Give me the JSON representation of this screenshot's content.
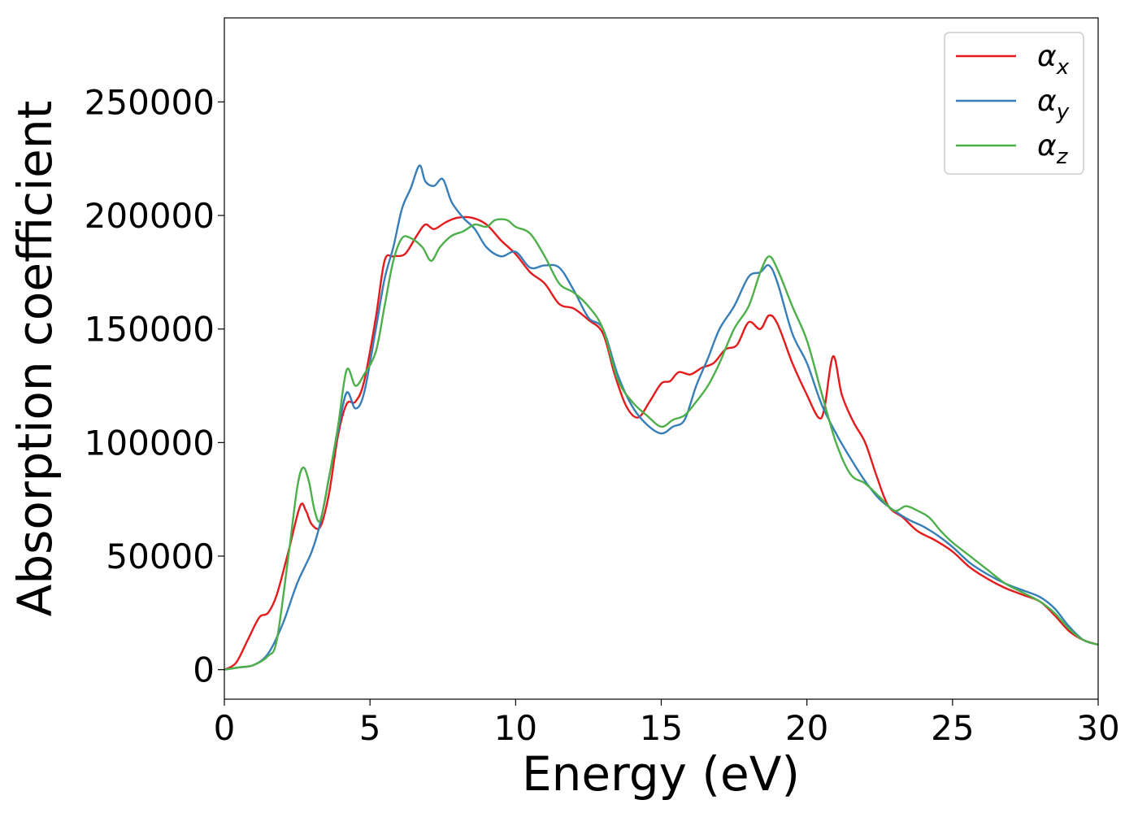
{
  "chart_data": {
    "type": "line",
    "title": "",
    "xlabel": "Energy (eV)",
    "ylabel": "Absorption coefficient",
    "xlim": [
      0,
      30
    ],
    "ylim": [
      -13000,
      287000
    ],
    "xticks": [
      0,
      5,
      10,
      15,
      20,
      25,
      30
    ],
    "yticks": [
      0,
      50000,
      100000,
      150000,
      200000,
      250000
    ],
    "grid": false,
    "legend_position": "top-right",
    "series": [
      {
        "name": "α",
        "subscript": "x",
        "color": "#e41a1c",
        "x": [
          0,
          0.4,
          0.8,
          1.2,
          1.5,
          1.8,
          2.2,
          2.6,
          2.8,
          3.0,
          3.3,
          3.6,
          3.9,
          4.2,
          4.5,
          4.8,
          5.2,
          5.5,
          5.8,
          6.2,
          6.6,
          6.9,
          7.2,
          7.6,
          8.0,
          8.5,
          9.0,
          9.5,
          10.0,
          10.5,
          11.0,
          11.5,
          12.0,
          12.5,
          13.0,
          13.4,
          13.8,
          14.2,
          14.6,
          15.0,
          15.3,
          15.6,
          16.0,
          16.4,
          16.8,
          17.2,
          17.6,
          18.0,
          18.4,
          18.7,
          19.0,
          19.5,
          20.0,
          20.4,
          20.6,
          20.9,
          21.2,
          21.6,
          22.0,
          22.4,
          22.8,
          23.3,
          23.8,
          24.4,
          25.0,
          25.6,
          26.2,
          26.8,
          27.4,
          28.0,
          28.5,
          29.0,
          29.5,
          30.0
        ],
        "y": [
          0,
          3000,
          13000,
          23000,
          25000,
          33000,
          52000,
          72000,
          70000,
          64000,
          63000,
          78000,
          103000,
          117000,
          118000,
          127000,
          155000,
          180000,
          182000,
          183000,
          191000,
          196000,
          194000,
          197000,
          199000,
          199000,
          196000,
          189000,
          183000,
          175000,
          170000,
          161000,
          159000,
          154000,
          148000,
          130000,
          116000,
          111000,
          118000,
          126000,
          127000,
          131000,
          130000,
          133000,
          135000,
          141000,
          143000,
          153000,
          150000,
          156000,
          152000,
          135000,
          121000,
          111000,
          115000,
          138000,
          121000,
          109000,
          100000,
          85000,
          72000,
          67000,
          61000,
          57000,
          52000,
          45000,
          40000,
          36000,
          33000,
          30000,
          24000,
          17000,
          13000,
          11000
        ]
      },
      {
        "name": "α",
        "subscript": "y",
        "color": "#377eb8",
        "x": [
          0,
          0.5,
          1.0,
          1.5,
          2.0,
          2.5,
          3.0,
          3.3,
          3.6,
          3.9,
          4.2,
          4.5,
          4.8,
          5.2,
          5.5,
          5.8,
          6.1,
          6.4,
          6.7,
          6.9,
          7.2,
          7.5,
          7.8,
          8.2,
          8.6,
          9.0,
          9.5,
          10.0,
          10.5,
          11.0,
          11.5,
          12.0,
          12.5,
          13.0,
          13.5,
          14.0,
          14.5,
          15.0,
          15.4,
          15.8,
          16.2,
          16.6,
          17.0,
          17.5,
          18.0,
          18.4,
          18.7,
          19.0,
          19.5,
          20.0,
          20.5,
          21.0,
          21.5,
          22.0,
          22.5,
          23.0,
          23.5,
          24.0,
          24.5,
          25.0,
          25.6,
          26.2,
          26.8,
          27.4,
          28.0,
          28.5,
          29.0,
          29.5,
          30.0
        ],
        "y": [
          0,
          1000,
          2000,
          7000,
          20000,
          38000,
          52000,
          65000,
          85000,
          105000,
          122000,
          115000,
          122000,
          150000,
          172000,
          186000,
          203000,
          212000,
          222000,
          215000,
          213000,
          216000,
          206000,
          199000,
          194000,
          186000,
          182000,
          184000,
          177000,
          178000,
          177000,
          167000,
          155000,
          150000,
          130000,
          116000,
          108000,
          104000,
          107000,
          110000,
          125000,
          137000,
          150000,
          160000,
          173000,
          175000,
          178000,
          170000,
          148000,
          135000,
          117000,
          104000,
          93000,
          83000,
          75000,
          70000,
          66000,
          63000,
          59000,
          54000,
          47000,
          42000,
          38000,
          35000,
          32000,
          27000,
          19000,
          13000,
          11000
        ]
      },
      {
        "name": "α",
        "subscript": "z",
        "color": "#4daf4a",
        "x": [
          0,
          0.5,
          1.0,
          1.5,
          1.8,
          2.2,
          2.5,
          2.7,
          2.9,
          3.1,
          3.3,
          3.6,
          3.9,
          4.2,
          4.5,
          4.8,
          5.2,
          5.5,
          5.8,
          6.1,
          6.4,
          6.8,
          7.1,
          7.4,
          7.8,
          8.2,
          8.6,
          9.0,
          9.3,
          9.7,
          10.0,
          10.5,
          11.0,
          11.5,
          12.0,
          12.5,
          13.0,
          13.5,
          14.0,
          14.5,
          15.0,
          15.4,
          15.8,
          16.2,
          16.6,
          17.0,
          17.5,
          18.0,
          18.4,
          18.7,
          19.0,
          19.5,
          20.0,
          20.5,
          21.0,
          21.5,
          22.0,
          22.5,
          23.0,
          23.4,
          23.8,
          24.2,
          24.6,
          25.0,
          25.6,
          26.2,
          26.8,
          27.4,
          28.0,
          28.5,
          29.0,
          29.5,
          30.0
        ],
        "y": [
          0,
          1000,
          2000,
          6000,
          13000,
          50000,
          80000,
          89000,
          83000,
          70000,
          66000,
          85000,
          107000,
          132000,
          125000,
          130000,
          140000,
          160000,
          180000,
          190000,
          190000,
          186000,
          180000,
          186000,
          191000,
          193000,
          196000,
          195000,
          198000,
          198000,
          195000,
          192000,
          182000,
          170000,
          166000,
          160000,
          150000,
          128000,
          118000,
          112000,
          107000,
          110000,
          112000,
          118000,
          125000,
          135000,
          150000,
          160000,
          175000,
          182000,
          176000,
          160000,
          145000,
          122000,
          100000,
          86000,
          82000,
          76000,
          70000,
          72000,
          70000,
          67000,
          61000,
          56000,
          50000,
          44000,
          38000,
          34000,
          30000,
          25000,
          18000,
          13000,
          11000
        ]
      }
    ]
  }
}
